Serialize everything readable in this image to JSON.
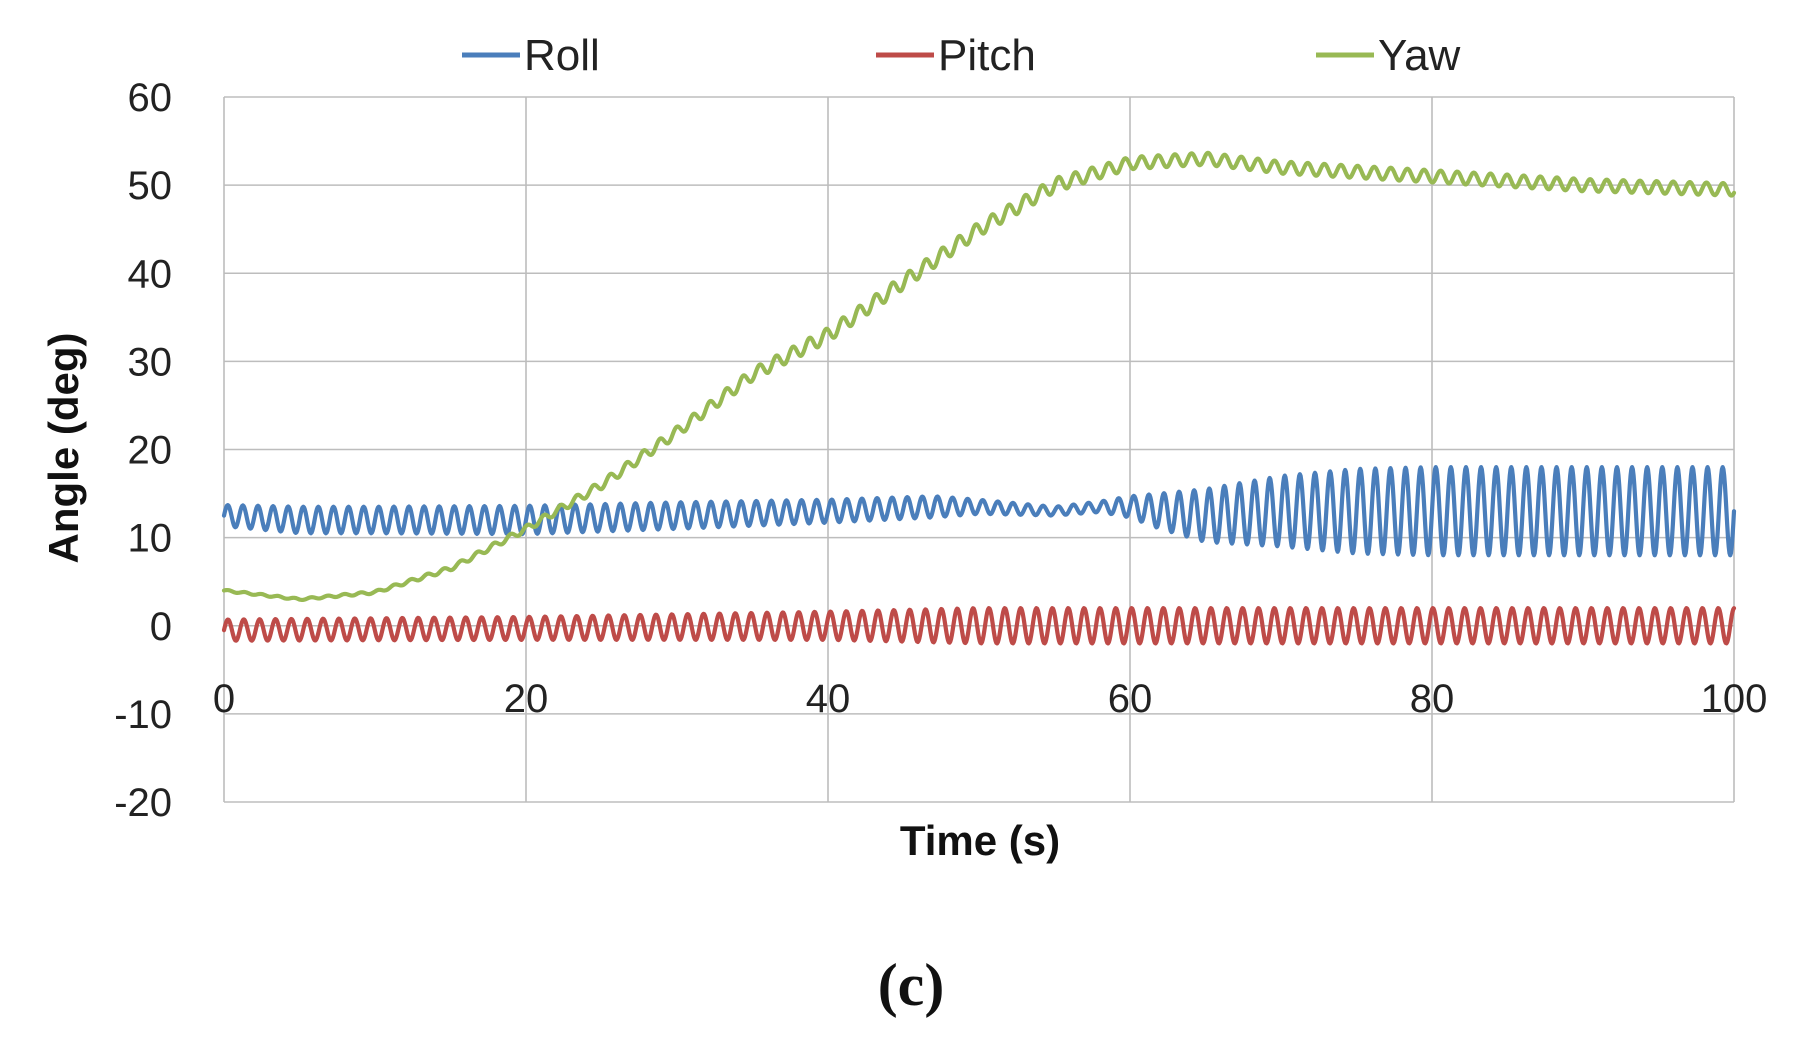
{
  "panel_label": "(c)",
  "chart_data": {
    "type": "line",
    "title": "",
    "xlabel": "Time (s)",
    "ylabel": "Angle (deg)",
    "xlim": [
      0,
      100
    ],
    "ylim": [
      -20,
      60
    ],
    "xticks": [
      0,
      20,
      40,
      60,
      80,
      100
    ],
    "yticks": [
      -20,
      -10,
      0,
      10,
      20,
      30,
      40,
      50,
      60
    ],
    "grid": true,
    "legend_position": "top",
    "oscillation_period_s": 1.1,
    "series": [
      {
        "name": "Roll",
        "color": "#4A7EBB",
        "x": [
          0,
          5,
          10,
          20,
          30,
          40,
          47,
          50,
          55,
          58,
          60,
          62,
          65,
          70,
          75,
          80,
          85,
          90,
          100
        ],
        "center": [
          12.5,
          12,
          12,
          12,
          12.5,
          13,
          13.5,
          13.5,
          13,
          13.5,
          13.5,
          13,
          12.5,
          13,
          13,
          13,
          13,
          13,
          13
        ],
        "amplitude": [
          1.2,
          1.5,
          1.5,
          1.6,
          1.5,
          1.3,
          1.2,
          0.8,
          0.5,
          0.6,
          1.2,
          2.0,
          3.0,
          4.0,
          4.8,
          5.0,
          5.0,
          5.0,
          5.0
        ],
        "period_s": 1.0
      },
      {
        "name": "Pitch",
        "color": "#BE4B48",
        "x": [
          0,
          20,
          40,
          50,
          60,
          100
        ],
        "center": [
          -0.5,
          -0.3,
          0,
          0,
          0,
          0
        ],
        "amplitude": [
          1.2,
          1.3,
          1.6,
          2.0,
          2.0,
          2.0
        ],
        "period_s": 1.05
      },
      {
        "name": "Yaw",
        "color": "#98B954",
        "x": [
          0,
          5,
          10,
          15,
          20,
          25,
          30,
          35,
          40,
          45,
          50,
          55,
          60,
          65,
          70,
          80,
          90,
          100
        ],
        "center": [
          4,
          3,
          3.8,
          6.5,
          11,
          16,
          22,
          28.5,
          33,
          39,
          45,
          50,
          52.5,
          53,
          52,
          51,
          50,
          49.5
        ],
        "amplitude": [
          0.1,
          0.1,
          0.15,
          0.25,
          0.35,
          0.5,
          0.6,
          0.7,
          0.8,
          0.8,
          0.8,
          0.8,
          0.7,
          0.7,
          0.7,
          0.7,
          0.7,
          0.7
        ],
        "period_s": 1.1
      }
    ]
  }
}
